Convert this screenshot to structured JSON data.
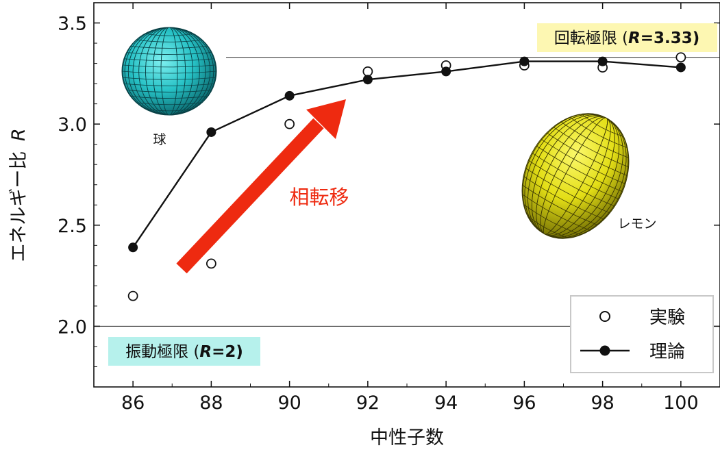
{
  "chart_data": {
    "type": "line",
    "xlabel": "中性子数",
    "ylabel_main": "エネルギー比",
    "ylabel_var": "R",
    "xlim": [
      85.0,
      101.0
    ],
    "ylim": [
      1.7,
      3.6
    ],
    "x_ticks": [
      86,
      88,
      90,
      92,
      94,
      96,
      98,
      100
    ],
    "x_tick_labels": [
      "86",
      "88",
      "90",
      "92",
      "94",
      "96",
      "98",
      "100"
    ],
    "y_ticks": [
      2.0,
      2.5,
      3.0,
      3.5
    ],
    "y_tick_labels": [
      "2.0",
      "2.5",
      "3.0",
      "3.5"
    ],
    "grid": false,
    "legend_position": "bottom-right",
    "series": [
      {
        "name": "実験",
        "marker": "open-circle",
        "line": false,
        "color": "#000000",
        "x": [
          86,
          88,
          90,
          92,
          94,
          96,
          98,
          100
        ],
        "y": [
          2.15,
          2.31,
          3.0,
          3.26,
          3.29,
          3.29,
          3.28,
          3.33
        ]
      },
      {
        "name": "理論",
        "marker": "filled-circle",
        "line": true,
        "color": "#000000",
        "x": [
          86,
          88,
          90,
          92,
          94,
          96,
          98,
          100
        ],
        "y": [
          2.39,
          2.96,
          3.14,
          3.22,
          3.26,
          3.31,
          3.31,
          3.28
        ]
      }
    ],
    "reference_lines": [
      {
        "y": 3.33,
        "label_main": "回転極限 (",
        "label_var": "R",
        "label_val": "=3.33)",
        "label_color": "#fdf7b2"
      },
      {
        "y": 2.0,
        "label_main": "振動極限 (",
        "label_var": "R",
        "label_val": "=2)",
        "label_color": "#b6f1ec"
      }
    ],
    "annotations": {
      "sphere_label": "球",
      "lemon_label": "レモン",
      "arrow_label": "相転移",
      "arrow_color": "#ee2a10",
      "sphere_color": "#2fc4c8",
      "lemon_color": "#e8e418"
    }
  }
}
